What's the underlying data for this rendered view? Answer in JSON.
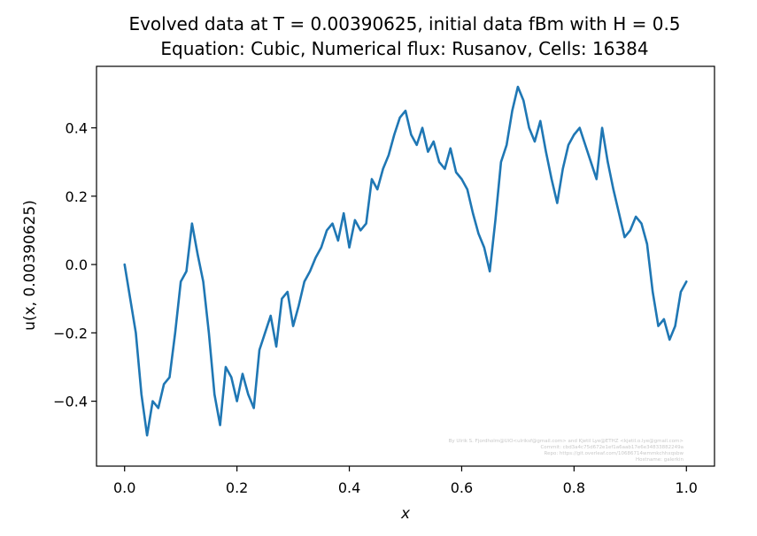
{
  "chart_data": {
    "type": "line",
    "title_line1": "Evolved data at T = 0.00390625, initial data fBm with H = 0.5",
    "title_line2": "Equation: Cubic, Numerical flux: Rusanov, Cells: 16384",
    "xlabel": "x",
    "ylabel": "u(x, 0.00390625)",
    "xlim": [
      -0.05,
      1.05
    ],
    "ylim": [
      -0.59,
      0.58
    ],
    "xticks": [
      0.0,
      0.2,
      0.4,
      0.6,
      0.8,
      1.0
    ],
    "xtick_labels": [
      "0.0",
      "0.2",
      "0.4",
      "0.6",
      "0.8",
      "1.0"
    ],
    "yticks": [
      -0.4,
      -0.2,
      0.0,
      0.2,
      0.4
    ],
    "ytick_labels": [
      "−0.4",
      "−0.2",
      "0.0",
      "0.2",
      "0.4"
    ],
    "line_color": "#1f77b4",
    "grid": false,
    "watermark_lines": [
      "By Ulrik S. Fjordholm@UiO<ulriksf@gmail.com> and Kjetil Lye@ETHZ <kjetil.o.lye@gmail.com>",
      "Commit: cbd3a4c75d672e1ef1a6aab17e6e34833882249a",
      "Repo: https://git.overleaf.com/10686714wmmkchhxqsbw",
      "Hostname: galerkin"
    ],
    "series": [
      {
        "x": [
          0.0,
          0.01,
          0.02,
          0.03,
          0.04,
          0.05,
          0.06,
          0.07,
          0.08,
          0.09,
          0.1,
          0.11,
          0.12,
          0.13,
          0.14,
          0.15,
          0.16,
          0.17,
          0.18,
          0.19,
          0.2,
          0.21,
          0.22,
          0.23,
          0.24,
          0.25,
          0.26,
          0.27,
          0.28,
          0.29,
          0.3,
          0.31,
          0.32,
          0.33,
          0.34,
          0.35,
          0.36,
          0.37,
          0.38,
          0.39,
          0.4,
          0.41,
          0.42,
          0.43,
          0.44,
          0.45,
          0.46,
          0.47,
          0.48,
          0.49,
          0.5,
          0.51,
          0.52,
          0.53,
          0.54,
          0.55,
          0.56,
          0.57,
          0.58,
          0.59,
          0.6,
          0.61,
          0.62,
          0.63,
          0.64,
          0.65,
          0.66,
          0.67,
          0.68,
          0.69,
          0.7,
          0.71,
          0.72,
          0.73,
          0.74,
          0.75,
          0.76,
          0.77,
          0.78,
          0.79,
          0.8,
          0.81,
          0.82,
          0.83,
          0.84,
          0.85,
          0.86,
          0.87,
          0.88,
          0.89,
          0.9,
          0.91,
          0.92,
          0.93,
          0.94,
          0.95,
          0.96,
          0.97,
          0.98,
          0.99,
          1.0
        ],
        "y": [
          0.0,
          -0.1,
          -0.2,
          -0.38,
          -0.5,
          -0.4,
          -0.42,
          -0.35,
          -0.33,
          -0.2,
          -0.05,
          -0.02,
          0.12,
          0.03,
          -0.05,
          -0.2,
          -0.38,
          -0.47,
          -0.3,
          -0.33,
          -0.4,
          -0.32,
          -0.38,
          -0.42,
          -0.25,
          -0.2,
          -0.15,
          -0.24,
          -0.1,
          -0.08,
          -0.18,
          -0.12,
          -0.05,
          -0.02,
          0.02,
          0.05,
          0.1,
          0.12,
          0.07,
          0.15,
          0.05,
          0.13,
          0.1,
          0.12,
          0.25,
          0.22,
          0.28,
          0.32,
          0.38,
          0.43,
          0.45,
          0.38,
          0.35,
          0.4,
          0.33,
          0.36,
          0.3,
          0.28,
          0.34,
          0.27,
          0.25,
          0.22,
          0.15,
          0.09,
          0.05,
          -0.02,
          0.13,
          0.3,
          0.35,
          0.45,
          0.52,
          0.48,
          0.4,
          0.36,
          0.42,
          0.33,
          0.25,
          0.18,
          0.28,
          0.35,
          0.38,
          0.4,
          0.35,
          0.3,
          0.25,
          0.4,
          0.3,
          0.22,
          0.15,
          0.08,
          0.1,
          0.14,
          0.12,
          0.06,
          -0.08,
          -0.18,
          -0.16,
          -0.22,
          -0.18,
          -0.08,
          -0.05
        ]
      }
    ]
  }
}
